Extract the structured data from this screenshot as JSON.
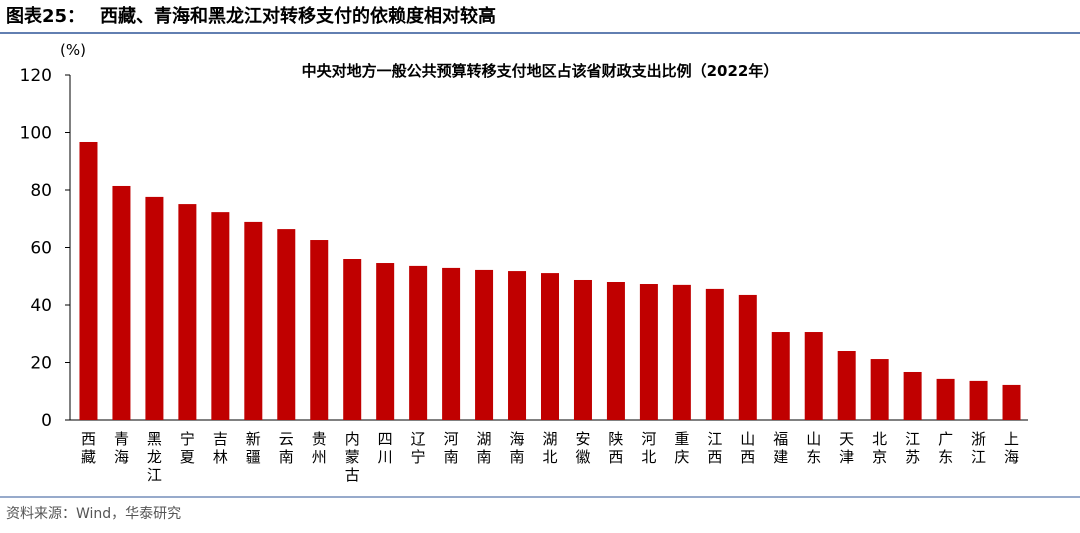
{
  "header": {
    "label": "图表25：",
    "title": "西藏、青海和黑龙江对转移支付的依赖度相对较高"
  },
  "footer": {
    "source": "资料来源：Wind，华泰研究"
  },
  "chart_data": {
    "type": "bar",
    "title": "中央对地方一般公共预算转移支付地区占该省财政支出比例（2022年）",
    "y_label": "(%)",
    "categories": [
      "西藏",
      "青海",
      "黑龙江",
      "宁夏",
      "吉林",
      "新疆",
      "云南",
      "贵州",
      "内蒙古",
      "四川",
      "辽宁",
      "河南",
      "湖南",
      "海南",
      "湖北",
      "安徽",
      "陕西",
      "河北",
      "重庆",
      "江西",
      "山西",
      "福建",
      "山东",
      "天津",
      "北京",
      "江苏",
      "广东",
      "浙江",
      "上海"
    ],
    "values": [
      96.7,
      81.4,
      77.6,
      75.1,
      72.3,
      68.9,
      66.4,
      62.6,
      56.0,
      54.6,
      53.6,
      52.9,
      52.2,
      51.8,
      51.1,
      48.7,
      48.0,
      47.3,
      47.0,
      45.6,
      43.5,
      30.6,
      30.6,
      24.0,
      21.2,
      16.7,
      14.3,
      13.6,
      12.2
    ],
    "color": "#c00000",
    "ylim": [
      0,
      120
    ],
    "yticks": [
      0,
      20,
      40,
      60,
      80,
      100,
      120
    ],
    "grid": false
  }
}
